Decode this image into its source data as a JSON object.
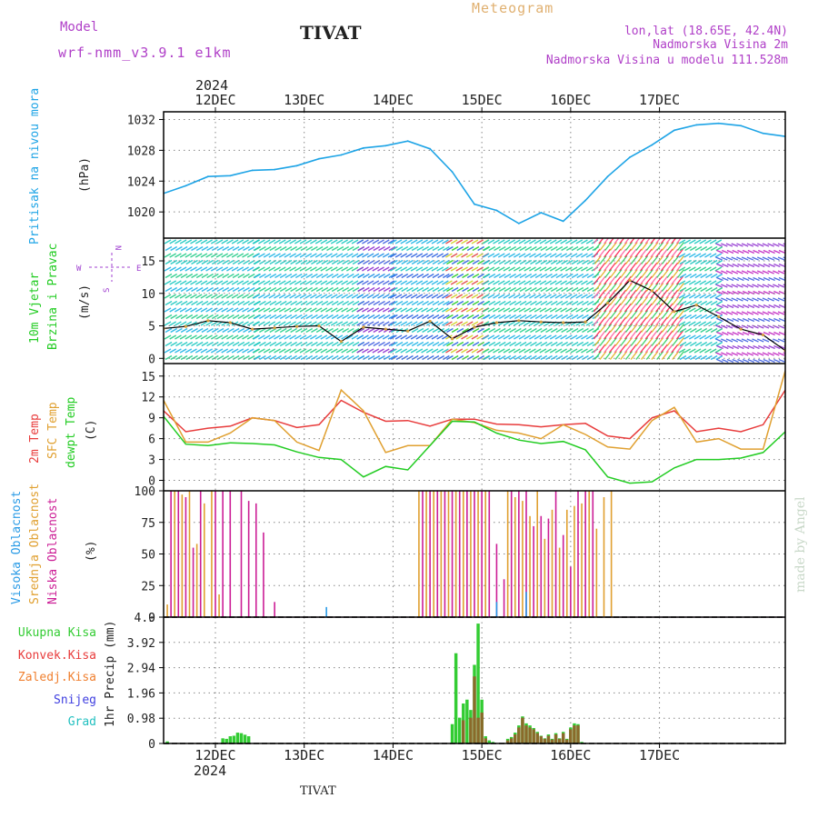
{
  "header": {
    "model_label": "Model",
    "model_name": "wrf-nmm_v3.9.1 e1km",
    "title": "TIVAT",
    "meteogram": "Meteogram",
    "lonlat": "lon,lat (18.65E, 42.4N)",
    "elevation": "Nadmorska Visina 2m",
    "model_elevation": "Nadmorska Visina u modelu 111.528m",
    "year_top": "2024",
    "year_bottom": "2024",
    "footer_station": "TIVAT",
    "credit": "made by Angel"
  },
  "colors": {
    "pressure": "#1ea4e6",
    "temp2m": "#e83c3c",
    "sfc": "#e0a030",
    "dewpt": "#22cc22",
    "high_cloud": "#2a9be6",
    "mid_cloud": "#e0a030",
    "low_cloud": "#cc1e96",
    "precip_total": "#33cc33",
    "precip_conv": "#8a6a2a",
    "wind_legend": "#a040d0"
  },
  "days": [
    "12DEC",
    "13DEC",
    "14DEC",
    "15DEC",
    "16DEC",
    "17DEC"
  ],
  "panel_labels": {
    "pressure": [
      "Pritisak na nivou mora",
      "(hPa)"
    ],
    "wind": [
      "10m Vjetar",
      "Brzina i Pravac",
      "(m/s)"
    ],
    "wind_compass": [
      "N",
      "S",
      "W",
      "E"
    ],
    "temp": [
      "2m Temp",
      "SFC Temp",
      "dewpt Temp",
      "(C)"
    ],
    "cloud": [
      "Visoka Oblacnost",
      "Srednja Oblacnost",
      "Niska Oblacnost",
      "(%)"
    ],
    "precip_y": "1hr Precip (mm)",
    "precip_legend": [
      "Ukupna Kisa",
      "Konvek.Kisa",
      "Zaledj.Kisa",
      "Snijeg",
      "Grad"
    ]
  },
  "chart_data": [
    {
      "type": "line",
      "name": "pressure",
      "ylabel": "(hPa)",
      "ylim": [
        1016.6,
        1033
      ],
      "yticks": [
        1020,
        1024,
        1028,
        1032
      ],
      "x_hours": [
        0,
        6,
        12,
        18,
        24,
        30,
        36,
        42,
        48,
        54,
        60,
        66,
        72,
        78,
        84,
        90,
        96,
        102,
        108,
        114,
        120,
        126,
        132,
        138,
        144,
        150,
        156,
        162,
        168
      ],
      "values": [
        1022.4,
        1023.4,
        1024.6,
        1024.7,
        1025.4,
        1025.5,
        1026.0,
        1026.9,
        1027.4,
        1028.3,
        1028.6,
        1029.2,
        1028.2,
        1025.2,
        1021.0,
        1020.2,
        1018.5,
        1019.9,
        1018.8,
        1021.5,
        1024.6,
        1027.1,
        1028.7,
        1030.6,
        1031.3,
        1031.5,
        1031.2,
        1030.2,
        1029.8
      ]
    },
    {
      "type": "line",
      "name": "wind",
      "ylabel": "(m/s)",
      "ylim": [
        -0.8,
        18.5
      ],
      "yticks": [
        0,
        5,
        10,
        15
      ],
      "x_hours": [
        0,
        6,
        12,
        18,
        24,
        30,
        36,
        42,
        48,
        54,
        60,
        66,
        72,
        78,
        84,
        90,
        96,
        102,
        108,
        114,
        120,
        126,
        132,
        138,
        144,
        150,
        156,
        162,
        168
      ],
      "values": [
        4.6,
        4.9,
        5.8,
        5.5,
        4.5,
        4.7,
        4.9,
        5.0,
        2.6,
        4.8,
        4.5,
        4.2,
        5.7,
        3.0,
        4.8,
        5.5,
        5.8,
        5.6,
        5.5,
        5.6,
        8.5,
        12.0,
        10.4,
        7.2,
        8.2,
        6.4,
        4.5,
        3.6,
        1.2
      ]
    },
    {
      "type": "line",
      "name": "temperature",
      "ylabel": "(C)",
      "ylim": [
        -1.5,
        16.8
      ],
      "yticks": [
        0,
        3,
        6,
        9,
        12,
        15
      ],
      "x_hours": [
        0,
        6,
        12,
        18,
        24,
        30,
        36,
        42,
        48,
        54,
        60,
        66,
        72,
        78,
        84,
        90,
        96,
        102,
        108,
        114,
        120,
        126,
        132,
        138,
        144,
        150,
        156,
        162,
        168
      ],
      "series": [
        {
          "name": "2m Temp",
          "values": [
            10.0,
            7.0,
            7.5,
            7.8,
            9.0,
            8.6,
            7.6,
            8.0,
            11.5,
            9.8,
            8.5,
            8.6,
            7.8,
            8.8,
            8.8,
            8.1,
            8.0,
            7.7,
            8.0,
            8.2,
            6.4,
            6.0,
            9.0,
            10.0,
            7.0,
            7.5,
            7.0,
            8.0,
            13.0
          ]
        },
        {
          "name": "SFC Temp",
          "values": [
            11.5,
            5.5,
            5.5,
            6.8,
            9.0,
            8.6,
            5.5,
            4.3,
            13.0,
            10.0,
            4.0,
            5.0,
            5.0,
            8.8,
            8.3,
            7.2,
            6.8,
            6.0,
            8.0,
            6.6,
            4.8,
            4.5,
            8.6,
            10.5,
            5.5,
            6.0,
            4.5,
            4.5,
            15.8
          ]
        },
        {
          "name": "dewpt Temp",
          "values": [
            9.2,
            5.2,
            5.0,
            5.4,
            5.3,
            5.1,
            4.1,
            3.3,
            3.0,
            0.5,
            2.0,
            1.5,
            5.0,
            8.5,
            8.4,
            6.8,
            5.8,
            5.3,
            5.6,
            4.4,
            0.5,
            -0.4,
            -0.2,
            1.8,
            3.0,
            3.0,
            3.2,
            4.0,
            7.0
          ]
        }
      ]
    },
    {
      "type": "bar",
      "name": "cloud_cover",
      "ylabel": "(%)",
      "ylim": [
        0,
        100
      ],
      "yticks": [
        0,
        25,
        50,
        75,
        100
      ],
      "series": [
        {
          "name": "Srednja Oblacnost",
          "x_hours": [
            1,
            3,
            5,
            7,
            9,
            11,
            13,
            15,
            69,
            71,
            73,
            75,
            77,
            79,
            81,
            83,
            85,
            87,
            93,
            95,
            97,
            99,
            101,
            103,
            105,
            107,
            109,
            111,
            113,
            115,
            117,
            119,
            121
          ],
          "values": [
            10,
            100,
            97,
            100,
            58,
            90,
            100,
            18,
            100,
            100,
            100,
            100,
            100,
            100,
            100,
            100,
            100,
            100,
            100,
            95,
            92,
            80,
            100,
            62,
            85,
            55,
            85,
            88,
            90,
            100,
            70,
            95,
            100
          ]
        },
        {
          "name": "Niska Oblacnost",
          "x_hours": [
            2,
            4,
            6,
            8,
            10,
            14,
            16,
            18,
            21,
            23,
            25,
            27,
            30,
            70,
            72,
            74,
            76,
            78,
            80,
            82,
            84,
            86,
            88,
            90,
            92,
            94,
            96,
            98,
            100,
            102,
            104,
            106,
            108,
            110,
            112,
            114,
            116
          ],
          "values": [
            100,
            100,
            95,
            55,
            100,
            100,
            100,
            100,
            100,
            92,
            90,
            67,
            12,
            100,
            100,
            100,
            100,
            100,
            100,
            100,
            100,
            100,
            100,
            58,
            30,
            100,
            100,
            100,
            72,
            80,
            78,
            100,
            65,
            40,
            100,
            100,
            100
          ]
        },
        {
          "name": "Visoka Oblacnost",
          "x_hours": [
            44,
            90,
            98
          ],
          "values": [
            8,
            12,
            20
          ]
        }
      ]
    },
    {
      "type": "bar",
      "name": "precipitation",
      "ylabel": "1hr Precip (mm)",
      "ylim": [
        0,
        4.9
      ],
      "yticks": [
        0,
        0.98,
        1.96,
        2.94,
        3.92,
        4.9
      ],
      "series": [
        {
          "name": "Ukupna Kisa",
          "x_hours": [
            1,
            16,
            17,
            18,
            19,
            20,
            21,
            22,
            23,
            78,
            79,
            80,
            81,
            82,
            83,
            84,
            85,
            86,
            87,
            88,
            89,
            93,
            94,
            95,
            96,
            97,
            98,
            99,
            100,
            101,
            102,
            103,
            104,
            105,
            106,
            107,
            108,
            109,
            110,
            111,
            112,
            113
          ],
          "values": [
            0.08,
            0.2,
            0.18,
            0.28,
            0.3,
            0.42,
            0.4,
            0.34,
            0.28,
            0.75,
            3.5,
            1.0,
            1.55,
            1.7,
            1.3,
            3.05,
            4.65,
            1.7,
            0.28,
            0.12,
            0.06,
            0.18,
            0.25,
            0.42,
            0.7,
            1.05,
            0.78,
            0.7,
            0.6,
            0.45,
            0.3,
            0.2,
            0.35,
            0.18,
            0.4,
            0.2,
            0.45,
            0.18,
            0.62,
            0.78,
            0.75,
            0.06
          ]
        },
        {
          "name": "Konvek.Kisa",
          "x_hours": [
            81,
            83,
            84,
            85,
            86,
            87,
            93,
            94,
            95,
            96,
            97,
            98,
            99,
            100,
            101,
            102,
            103,
            104,
            105,
            106,
            107,
            108,
            109,
            110,
            111,
            112
          ],
          "values": [
            0.9,
            1.0,
            2.6,
            1.0,
            1.2,
            0.2,
            0.12,
            0.2,
            0.35,
            0.62,
            1.0,
            0.7,
            0.62,
            0.55,
            0.4,
            0.28,
            0.18,
            0.3,
            0.15,
            0.35,
            0.18,
            0.4,
            0.15,
            0.55,
            0.7,
            0.7
          ]
        }
      ]
    }
  ]
}
